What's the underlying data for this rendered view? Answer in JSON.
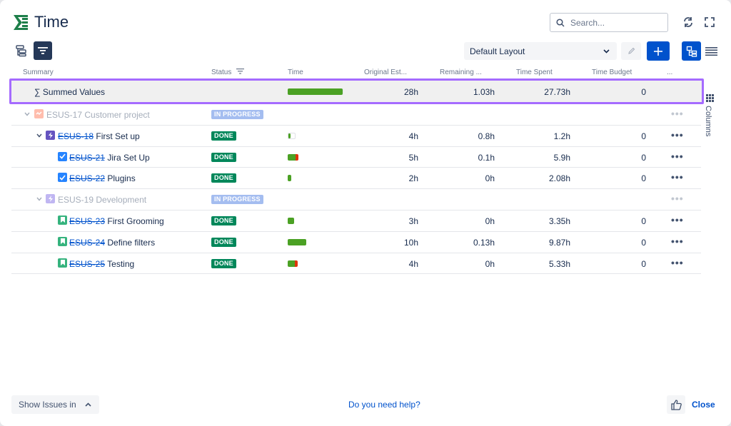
{
  "app": {
    "title": "Time"
  },
  "search": {
    "placeholder": "Search..."
  },
  "toolbar": {
    "layout_label": "Default Layout"
  },
  "columns": {
    "summary": "Summary",
    "status": "Status",
    "time": "Time",
    "original_estimate": "Original Est...",
    "remaining": "Remaining ...",
    "time_spent": "Time Spent",
    "time_budget": "Time Budget",
    "more": "..."
  },
  "summed": {
    "label": "∑ Summed Values",
    "time_progress": 0.99,
    "original_estimate": "28h",
    "remaining": "1.03h",
    "time_spent": "27.73h",
    "time_budget": "0"
  },
  "rows": [
    {
      "key": "ESUS-17",
      "summary": "Customer project",
      "type": "epic",
      "status": "IN PROGRESS",
      "muted": true,
      "level": 0
    },
    {
      "key": "ESUS-18",
      "summary": "First Set up",
      "type": "epic-purple",
      "status": "DONE",
      "level": 1,
      "original_estimate": "4h",
      "remaining": "0.8h",
      "time_spent": "1.2h",
      "time_budget": "0"
    },
    {
      "key": "ESUS-21",
      "summary": "Jira Set Up",
      "type": "task",
      "status": "DONE",
      "level": 2,
      "original_estimate": "5h",
      "remaining": "0.1h",
      "time_spent": "5.9h",
      "time_budget": "0"
    },
    {
      "key": "ESUS-22",
      "summary": "Plugins",
      "type": "task",
      "status": "DONE",
      "level": 2,
      "original_estimate": "2h",
      "remaining": "0h",
      "time_spent": "2.08h",
      "time_budget": "0"
    },
    {
      "key": "ESUS-19",
      "summary": "Development",
      "type": "epic-purple",
      "status": "IN PROGRESS",
      "muted": true,
      "level": 1
    },
    {
      "key": "ESUS-23",
      "summary": "First Grooming",
      "type": "story",
      "status": "DONE",
      "level": 2,
      "original_estimate": "3h",
      "remaining": "0h",
      "time_spent": "3.35h",
      "time_budget": "0"
    },
    {
      "key": "ESUS-24",
      "summary": "Define filters",
      "type": "story",
      "status": "DONE",
      "level": 2,
      "original_estimate": "10h",
      "remaining": "0.13h",
      "time_spent": "9.87h",
      "time_budget": "0"
    },
    {
      "key": "ESUS-25",
      "summary": "Testing",
      "type": "story",
      "status": "DONE",
      "level": 2,
      "original_estimate": "4h",
      "remaining": "0h",
      "time_spent": "5.33h",
      "time_budget": "0"
    }
  ],
  "side": {
    "columns_label": "Columns"
  },
  "footer": {
    "show_issues_label": "Show Issues in",
    "help_label": "Do you need help?",
    "close_label": "Close"
  },
  "colors": {
    "accent": "#0052cc",
    "done": "#00875a",
    "in_progress": "#a4bdf0",
    "progress_bar": "#4ba124",
    "overrun": "#de350b",
    "highlight": "#a56bff"
  }
}
